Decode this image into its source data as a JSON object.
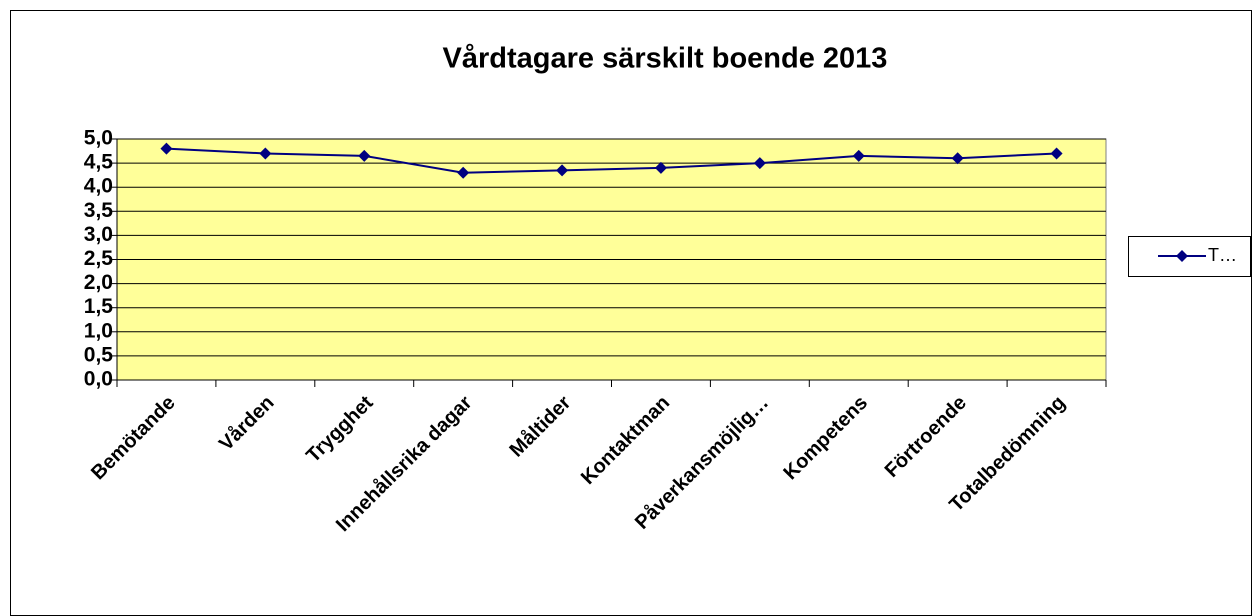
{
  "chart_data": {
    "type": "line",
    "title": "Vårdtagare särskilt boende 2013",
    "categories": [
      "Bemötande",
      "Vården",
      "Trygghet",
      "Innehållsrika dagar",
      "Måltider",
      "Kontaktman",
      "Påverkansmöjlig…",
      "Kompetens",
      "Förtroende",
      "Totalbedömning"
    ],
    "series": [
      {
        "name": "T…",
        "color": "#000080",
        "values": [
          4.8,
          4.7,
          4.65,
          4.3,
          4.35,
          4.4,
          4.5,
          4.65,
          4.6,
          4.7
        ]
      }
    ],
    "ylim": [
      0,
      5
    ],
    "yticks": [
      {
        "value": 0,
        "label": "0,0"
      },
      {
        "value": 0.5,
        "label": "0,5"
      },
      {
        "value": 1,
        "label": "1,0"
      },
      {
        "value": 1.5,
        "label": "1,5"
      },
      {
        "value": 2,
        "label": "2,0"
      },
      {
        "value": 2.5,
        "label": "2,5"
      },
      {
        "value": 3,
        "label": "3,0"
      },
      {
        "value": 3.5,
        "label": "3,5"
      },
      {
        "value": 4,
        "label": "4,0"
      },
      {
        "value": 4.5,
        "label": "4,5"
      },
      {
        "value": 5,
        "label": "5,0"
      }
    ],
    "grid": true,
    "plot_background": "#ffff99",
    "legend": "right"
  }
}
